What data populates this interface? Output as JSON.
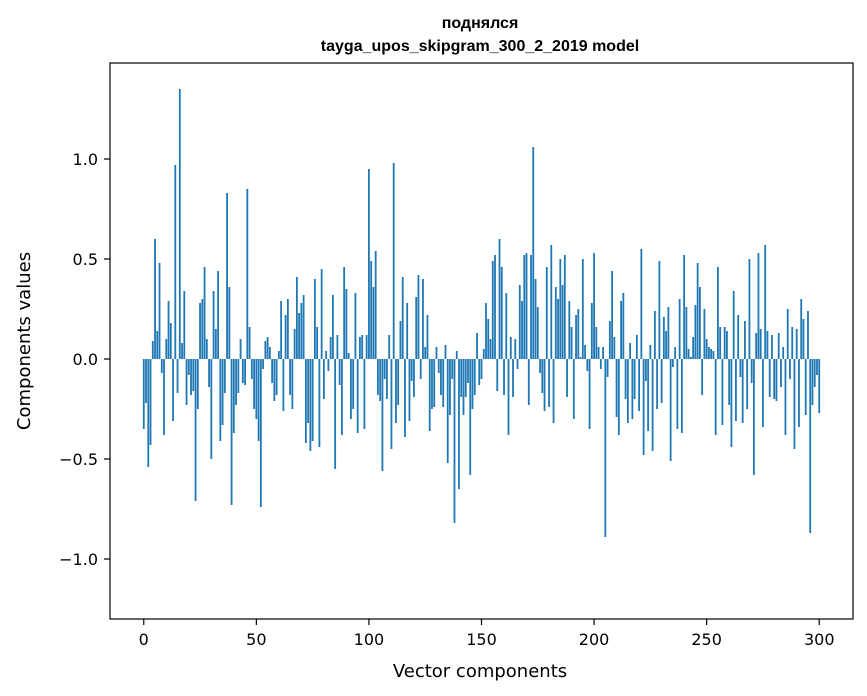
{
  "chart_data": {
    "type": "bar",
    "title": "поднялся",
    "subtitle": "tayga_upos_skipgram_300_2_2019 model",
    "xlabel": "Vector components",
    "ylabel": "Components values",
    "xlim": [
      -15,
      315
    ],
    "ylim": [
      -1.3,
      1.48
    ],
    "xticks": [
      0,
      50,
      100,
      150,
      200,
      250,
      300
    ],
    "xtick_labels": [
      "0",
      "50",
      "100",
      "150",
      "200",
      "250",
      "300"
    ],
    "yticks": [
      -1.0,
      -0.5,
      0.0,
      0.5,
      1.0
    ],
    "ytick_labels": [
      "−1.0",
      "−0.5",
      "0.0",
      "0.5",
      "1.0"
    ],
    "grid": false,
    "bar_color": "#1f77b4",
    "values": [
      -0.35,
      -0.22,
      -0.54,
      -0.43,
      0.09,
      0.6,
      0.14,
      0.48,
      -0.07,
      -0.38,
      0.1,
      0.29,
      0.18,
      -0.31,
      0.97,
      -0.17,
      1.35,
      0.08,
      0.34,
      -0.23,
      -0.08,
      -0.18,
      -0.16,
      -0.71,
      -0.25,
      0.28,
      0.3,
      0.46,
      0.1,
      -0.14,
      -0.5,
      0.34,
      0.15,
      0.44,
      -0.41,
      -0.33,
      -0.17,
      0.83,
      0.36,
      -0.73,
      -0.37,
      -0.23,
      -0.17,
      0.1,
      -0.12,
      -0.13,
      0.85,
      0.16,
      -0.1,
      -0.25,
      -0.3,
      -0.41,
      -0.74,
      -0.05,
      0.09,
      0.11,
      0.06,
      -0.12,
      -0.21,
      -0.18,
      0.04,
      0.29,
      -0.26,
      0.22,
      0.3,
      -0.18,
      -0.25,
      0.15,
      0.41,
      0.23,
      0.28,
      0.32,
      -0.42,
      -0.32,
      -0.46,
      -0.41,
      0.4,
      0.16,
      -0.44,
      0.45,
      -0.2,
      0.04,
      -0.06,
      0.11,
      0.32,
      -0.55,
      0.12,
      -0.13,
      -0.38,
      0.46,
      0.35,
      0.03,
      -0.3,
      -0.25,
      0.33,
      -0.37,
      0.11,
      0.12,
      -0.35,
      0.12,
      0.95,
      0.49,
      0.36,
      0.54,
      -0.18,
      -0.21,
      -0.56,
      -0.1,
      -0.2,
      0.12,
      -0.45,
      0.98,
      -0.32,
      -0.23,
      0.19,
      0.41,
      -0.39,
      0.28,
      -0.31,
      -0.11,
      -0.19,
      0.31,
      0.42,
      -0.1,
      0.4,
      0.06,
      0.22,
      -0.36,
      -0.25,
      -0.24,
      0.06,
      -0.07,
      -0.18,
      -0.24,
      0.07,
      -0.52,
      -0.28,
      -0.1,
      -0.82,
      0.04,
      -0.65,
      -0.19,
      -0.28,
      -0.19,
      -0.12,
      -0.58,
      -0.25,
      -0.18,
      0.13,
      -0.13,
      -0.1,
      0.05,
      0.28,
      0.2,
      0.1,
      0.49,
      0.52,
      -0.16,
      0.6,
      0.46,
      -0.18,
      0.33,
      -0.38,
      0.11,
      -0.19,
      0.1,
      -0.05,
      0.37,
      0.29,
      0.52,
      0.53,
      -0.23,
      0.52,
      1.06,
      0.4,
      0.26,
      -0.07,
      -0.17,
      -0.26,
      0.46,
      -0.24,
      0.57,
      -0.32,
      0.36,
      0.3,
      0.5,
      0.37,
      0.52,
      -0.19,
      0.29,
      0.16,
      -0.3,
      0.22,
      0.25,
      0.01,
      0.5,
      0.07,
      -0.06,
      -0.35,
      0.28,
      0.53,
      0.16,
      0.06,
      -0.05,
      0.06,
      -0.89,
      -0.09,
      0.19,
      0.44,
      0.11,
      -0.29,
      -0.38,
      0.29,
      0.33,
      -0.2,
      -0.32,
      0.08,
      -0.3,
      -0.2,
      0.12,
      -0.26,
      0.55,
      -0.48,
      -0.11,
      -0.36,
      0.07,
      -0.46,
      0.24,
      -0.25,
      0.49,
      -0.22,
      0.21,
      0.14,
      0.26,
      -0.51,
      -0.04,
      0.06,
      -0.35,
      0.3,
      -0.37,
      0.52,
      0.26,
      0.05,
      0.01,
      0.11,
      0.27,
      0.48,
      0.36,
      -0.18,
      0.25,
      0.1,
      0.06,
      0.05,
      0.04,
      -0.38,
      0.46,
      0.16,
      -0.33,
      0.16,
      0.14,
      -0.23,
      -0.44,
      0.34,
      -0.31,
      0.22,
      -0.09,
      -0.32,
      0.19,
      -0.25,
      0.5,
      -0.12,
      -0.58,
      0.13,
      0.53,
      0.15,
      -0.34,
      0.57,
      0.14,
      -0.19,
      0.12,
      -0.2,
      -0.21,
      0.13,
      -0.14,
      0.06,
      -0.38,
      0.25,
      -0.1,
      0.16,
      -0.45,
      0.15,
      -0.34,
      0.3,
      0.2,
      -0.28,
      0.24,
      -0.87,
      -0.23,
      -0.14,
      -0.08,
      -0.27
    ]
  }
}
